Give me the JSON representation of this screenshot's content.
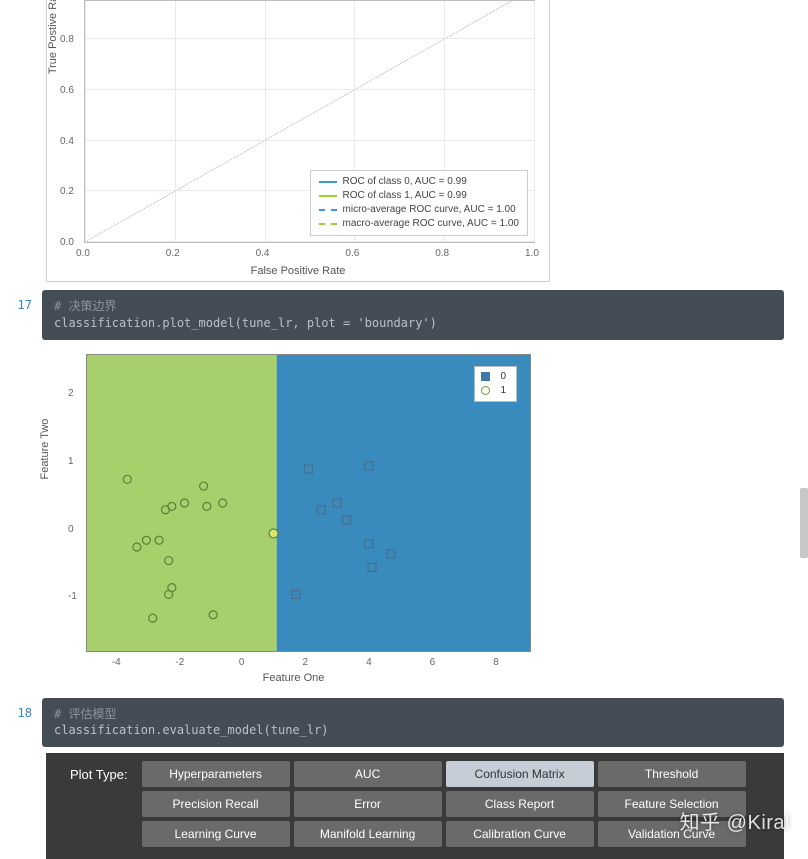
{
  "roc": {
    "type": "line",
    "xlim": [
      0.0,
      1.0
    ],
    "ylim": [
      0.0,
      1.05
    ],
    "xticks": [
      0.0,
      0.2,
      0.4,
      0.6,
      0.8,
      1.0
    ],
    "yticks": [
      0.0,
      0.2,
      0.4,
      0.6,
      0.8
    ],
    "xlabel": "False Positive Rate",
    "ylabel": "True Postive Rate",
    "label_fontsize": 11,
    "tick_fontsize": 10,
    "background_color": "#ffffff",
    "grid_color": "#e9e9e9",
    "diag_line": {
      "color": "#333333",
      "style": "dotted",
      "width": 1
    },
    "legend_position": "lower-right",
    "legend_border": "#cccccc",
    "series": [
      {
        "label": "ROC of class 0, AUC = 0.99",
        "color": "#3498db",
        "dash": false
      },
      {
        "label": "ROC of class 1, AUC = 0.99",
        "color": "#9acd32",
        "dash": false
      },
      {
        "label": "micro-average ROC curve, AUC = 1.00",
        "color": "#3498db",
        "dash": true
      },
      {
        "label": "macro-average ROC curve, AUC = 1.00",
        "color": "#9acd32",
        "dash": true
      }
    ]
  },
  "cell17": {
    "number": "17",
    "comment": "# 决策边界",
    "code": "classification.plot_model(tune_lr, plot = 'boundary')"
  },
  "boundary": {
    "type": "scatter+boundary",
    "xlim": [
      -5,
      9
    ],
    "ylim": [
      -1.8,
      2.6
    ],
    "xticks": [
      -4,
      -2,
      0,
      2,
      4,
      6,
      8
    ],
    "yticks": [
      -1,
      0,
      1,
      2
    ],
    "xlabel": "Feature One",
    "ylabel": "Feature Two",
    "label_fontsize": 11,
    "tick_fontsize": 10,
    "region0_color": "#a7cf6b",
    "region1_color": "#3a8bbd",
    "boundary_x": 1.0,
    "legend": [
      {
        "label": "0",
        "type": "square-fill",
        "color": "#4178a8"
      },
      {
        "label": "1",
        "type": "circle",
        "color": "#6f9a3b"
      }
    ],
    "class0_marker": {
      "shape": "square",
      "stroke": "#4a6b8a",
      "fill": "none",
      "size": 8
    },
    "class1_marker": {
      "shape": "circle",
      "stroke": "#5d7f36",
      "fill": "none",
      "size": 8
    },
    "highlight_marker": {
      "shape": "circle",
      "stroke": "#5d7f36",
      "fill": "#d6e86a",
      "size": 9
    },
    "class0_points": [
      [
        2.0,
        0.9
      ],
      [
        2.4,
        0.3
      ],
      [
        2.9,
        0.4
      ],
      [
        3.2,
        0.15
      ],
      [
        3.9,
        0.95
      ],
      [
        3.9,
        -0.2
      ],
      [
        4.6,
        -0.35
      ],
      [
        1.6,
        -0.95
      ],
      [
        4.0,
        -0.55
      ]
    ],
    "class1_points": [
      [
        -3.7,
        0.75
      ],
      [
        -1.3,
        0.65
      ],
      [
        -2.3,
        0.35
      ],
      [
        -2.5,
        0.3
      ],
      [
        -1.9,
        0.4
      ],
      [
        -1.2,
        0.35
      ],
      [
        -0.7,
        0.4
      ],
      [
        -3.1,
        -0.15
      ],
      [
        -2.7,
        -0.15
      ],
      [
        -3.4,
        -0.25
      ],
      [
        -2.4,
        -0.45
      ],
      [
        -2.3,
        -0.85
      ],
      [
        -2.4,
        -0.95
      ],
      [
        -1.0,
        -1.25
      ],
      [
        -2.9,
        -1.3
      ]
    ],
    "highlight_points": [
      [
        0.9,
        -0.05
      ]
    ]
  },
  "cell18": {
    "number": "18",
    "comment": "# 评估模型",
    "code": "classification.evaluate_model(tune_lr)"
  },
  "plot_types": {
    "label": "Plot Type:",
    "rows": [
      [
        "Hyperparameters",
        "AUC",
        "Confusion Matrix",
        "Threshold"
      ],
      [
        "Precision Recall",
        "Error",
        "Class Report",
        "Feature Selection"
      ],
      [
        "Learning Curve",
        "Manifold Learning",
        "Calibration Curve",
        "Validation Curve"
      ]
    ],
    "selected": "Confusion Matrix",
    "btn_bg": "#6a6a6a",
    "btn_bg_selected": "#c5ced6",
    "btn_color": "#ffffff",
    "btn_color_selected": "#333333",
    "panel_bg": "#3a3a3a"
  },
  "watermark": "知乎 @Kiral"
}
